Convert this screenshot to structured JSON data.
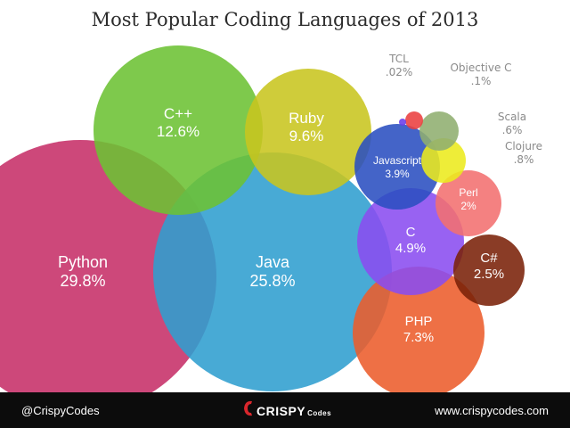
{
  "chart_data": {
    "type": "bubble",
    "title": "Most Popular Coding Languages of 2013",
    "unit": "%",
    "series": [
      {
        "name": "Python",
        "value": 29.8,
        "value_label": "29.8%",
        "color": "#c62f68",
        "label_color": "#ffffff"
      },
      {
        "name": "Java",
        "value": 25.8,
        "value_label": "25.8%",
        "color": "#2f9ecf",
        "label_color": "#ffffff"
      },
      {
        "name": "C++",
        "value": 12.6,
        "value_label": "12.6%",
        "color": "#6cc133",
        "label_color": "#ffffff"
      },
      {
        "name": "Ruby",
        "value": 9.6,
        "value_label": "9.6%",
        "color": "#c8c51f",
        "label_color": "#ffffff"
      },
      {
        "name": "PHP",
        "value": 7.3,
        "value_label": "7.3%",
        "color": "#ec5c2b",
        "label_color": "#ffffff"
      },
      {
        "name": "C",
        "value": 4.9,
        "value_label": "4.9%",
        "color": "#8a4cf0",
        "label_color": "#ffffff"
      },
      {
        "name": "Javascript",
        "value": 3.9,
        "value_label": "3.9%",
        "color": "#2a4fc0",
        "label_color": "#ffffff"
      },
      {
        "name": "C#",
        "value": 2.5,
        "value_label": "2.5%",
        "color": "#7a2108",
        "label_color": "#ffffff"
      },
      {
        "name": "Perl",
        "value": 2,
        "value_label": "2%",
        "color": "#f26f6f",
        "label_color": "#ffffff"
      },
      {
        "name": "Clojure",
        "value": 0.8,
        "value_label": ".8%",
        "color": "#ecea1c",
        "label_color": "#8a8a8a"
      },
      {
        "name": "Scala",
        "value": 0.6,
        "value_label": ".6%",
        "color": "#8fae6f",
        "label_color": "#8a8a8a"
      },
      {
        "name": "Objective C",
        "value": 0.1,
        "value_label": ".1%",
        "color": "#ea3f3f",
        "label_color": "#8a8a8a"
      },
      {
        "name": "TCL",
        "value": 0.02,
        "value_label": ".02%",
        "color": "#6a3ce8",
        "label_color": "#8a8a8a"
      }
    ]
  },
  "footer": {
    "handle": "@CrispyCodes",
    "brand_main": "CRISPY",
    "brand_sub": "Codes",
    "website": "www.crispycodes.com"
  }
}
